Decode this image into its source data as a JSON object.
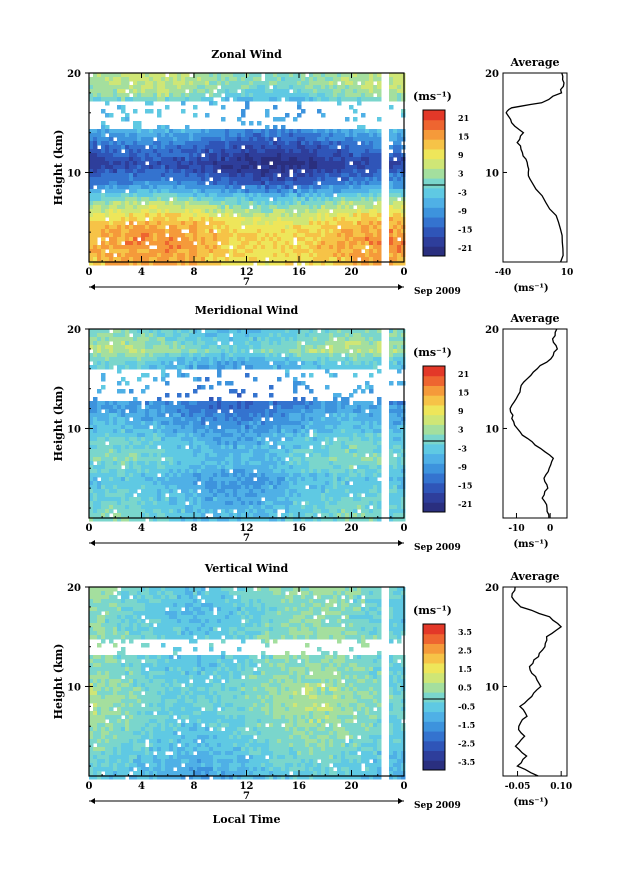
{
  "figure": {
    "xlabel": "Local Time",
    "date_label": "Sep 2009",
    "day_label": "7",
    "x_ticks": [
      "0",
      "4",
      "8",
      "12",
      "16",
      "20",
      "0"
    ],
    "y_ticks": [
      "20",
      "10"
    ],
    "ylabel": "Height (km)",
    "units": "(ms⁻¹)",
    "colors": {
      "palette": [
        "#2a2f7f",
        "#2e3e9b",
        "#2f55b8",
        "#3473cf",
        "#3d93dd",
        "#4fb0e6",
        "#5fc9e3",
        "#7ad6cc",
        "#a4df9e",
        "#cfe676",
        "#eee65a",
        "#f6c347",
        "#f59a3a",
        "#ee6530",
        "#e33828"
      ],
      "axis": "#000000",
      "profile": "#000000",
      "missing": "#ffffff"
    }
  },
  "chart_data": [
    {
      "type": "heatmap",
      "title": "Zonal Wind",
      "xlabel": "",
      "ylabel": "Height (km)",
      "x_ticks": [
        "0",
        "4",
        "8",
        "12",
        "16",
        "20",
        "0"
      ],
      "xlim": [
        0,
        24
      ],
      "ylim": [
        1,
        20
      ],
      "colorbar": {
        "label": "(ms⁻¹)",
        "ticks": [
          "21",
          "15",
          "9",
          "3",
          "-3",
          "-9",
          "-15",
          "-21"
        ],
        "range": [
          -24,
          24
        ]
      },
      "structure": [
        {
          "height_km": 1,
          "value": 12
        },
        {
          "height_km": 3,
          "value": 14
        },
        {
          "height_km": 5,
          "value": 12
        },
        {
          "height_km": 7,
          "value": 3
        },
        {
          "height_km": 9,
          "value": -12
        },
        {
          "height_km": 11,
          "value": -20
        },
        {
          "height_km": 13,
          "value": -14
        },
        {
          "height_km": 15,
          "value": -6
        },
        {
          "height_km": 17,
          "value": -6
        },
        {
          "height_km": 18,
          "value": 0
        },
        {
          "height_km": 19,
          "value": 3
        },
        {
          "height_km": 20,
          "value": 3
        }
      ],
      "missing_ranges_km": [
        [
          14.5,
          17.5
        ]
      ],
      "average_profile": {
        "title": "Average",
        "xlabel": "(ms⁻¹)",
        "x_ticks": [
          "-40",
          "10"
        ],
        "xlim": [
          -40,
          10
        ],
        "y_ticks": [
          "20",
          "10"
        ],
        "points": [
          {
            "height_km": 1,
            "value": 6
          },
          {
            "height_km": 3,
            "value": 7
          },
          {
            "height_km": 5,
            "value": 4
          },
          {
            "height_km": 7,
            "value": -6
          },
          {
            "height_km": 9,
            "value": -18
          },
          {
            "height_km": 10,
            "value": -20
          },
          {
            "height_km": 11,
            "value": -22
          },
          {
            "height_km": 12,
            "value": -24
          },
          {
            "height_km": 13,
            "value": -28
          },
          {
            "height_km": 14,
            "value": -25
          },
          {
            "height_km": 15,
            "value": -33
          },
          {
            "height_km": 16,
            "value": -38
          },
          {
            "height_km": 16.5,
            "value": -34
          },
          {
            "height_km": 17,
            "value": -10
          },
          {
            "height_km": 18,
            "value": 5
          },
          {
            "height_km": 19,
            "value": 7
          },
          {
            "height_km": 20,
            "value": 6
          }
        ]
      }
    },
    {
      "type": "heatmap",
      "title": "Meridional Wind",
      "xlabel": "",
      "ylabel": "Height (km)",
      "x_ticks": [
        "0",
        "4",
        "8",
        "12",
        "16",
        "20",
        "0"
      ],
      "xlim": [
        0,
        24
      ],
      "ylim": [
        1,
        20
      ],
      "colorbar": {
        "label": "(ms⁻¹)",
        "ticks": [
          "21",
          "15",
          "9",
          "3",
          "-3",
          "-9",
          "-15",
          "-21"
        ],
        "range": [
          -24,
          24
        ]
      },
      "structure": [
        {
          "height_km": 1,
          "value": -2
        },
        {
          "height_km": 3,
          "value": -4
        },
        {
          "height_km": 5,
          "value": -6
        },
        {
          "height_km": 7,
          "value": -2
        },
        {
          "height_km": 9,
          "value": -4
        },
        {
          "height_km": 11,
          "value": -8
        },
        {
          "height_km": 13,
          "value": -12
        },
        {
          "height_km": 15,
          "value": -8
        },
        {
          "height_km": 17,
          "value": -4
        },
        {
          "height_km": 18,
          "value": 2
        },
        {
          "height_km": 19,
          "value": 0
        },
        {
          "height_km": 20,
          "value": -2
        }
      ],
      "missing_ranges_km": [
        [
          13,
          16
        ]
      ],
      "average_profile": {
        "title": "Average",
        "xlabel": "(ms⁻¹)",
        "x_ticks": [
          "-10",
          "0"
        ],
        "xlim": [
          -14,
          5
        ],
        "y_ticks": [
          "20",
          "10"
        ],
        "points": [
          {
            "height_km": 1,
            "value": 0
          },
          {
            "height_km": 2,
            "value": -1
          },
          {
            "height_km": 3,
            "value": -2
          },
          {
            "height_km": 4,
            "value": -1
          },
          {
            "height_km": 5,
            "value": -2
          },
          {
            "height_km": 6,
            "value": 0
          },
          {
            "height_km": 7,
            "value": 1
          },
          {
            "height_km": 8,
            "value": -3
          },
          {
            "height_km": 9,
            "value": -7
          },
          {
            "height_km": 10,
            "value": -10
          },
          {
            "height_km": 11,
            "value": -11
          },
          {
            "height_km": 12,
            "value": -12
          },
          {
            "height_km": 13,
            "value": -10
          },
          {
            "height_km": 14,
            "value": -9
          },
          {
            "height_km": 15,
            "value": -7
          },
          {
            "height_km": 16,
            "value": -4
          },
          {
            "height_km": 17,
            "value": 0
          },
          {
            "height_km": 18,
            "value": 2
          },
          {
            "height_km": 19,
            "value": 1
          },
          {
            "height_km": 20,
            "value": 2
          }
        ]
      }
    },
    {
      "type": "heatmap",
      "title": "Vertical Wind",
      "xlabel": "Local Time",
      "ylabel": "Height (km)",
      "x_ticks": [
        "0",
        "4",
        "8",
        "12",
        "16",
        "20",
        "0"
      ],
      "xlim": [
        0,
        24
      ],
      "ylim": [
        1,
        20
      ],
      "colorbar": {
        "label": "(ms⁻¹)",
        "ticks": [
          "3.5",
          "2.5",
          "1.5",
          "0.5",
          "-0.5",
          "-1.5",
          "-2.5",
          "-3.5"
        ],
        "range": [
          -4,
          4
        ]
      },
      "structure": [
        {
          "height_km": 1,
          "value": -0.8
        },
        {
          "height_km": 3,
          "value": -0.5
        },
        {
          "height_km": 5,
          "value": -0.2
        },
        {
          "height_km": 7,
          "value": 0
        },
        {
          "height_km": 9,
          "value": 0.2
        },
        {
          "height_km": 11,
          "value": 0
        },
        {
          "height_km": 13,
          "value": -0.2
        },
        {
          "height_km": 15,
          "value": 0
        },
        {
          "height_km": 17,
          "value": -0.3
        },
        {
          "height_km": 19,
          "value": -0.2
        },
        {
          "height_km": 20,
          "value": 0
        }
      ],
      "missing_ranges_km": [
        [
          13.5,
          15
        ]
      ],
      "average_profile": {
        "title": "Average",
        "xlabel": "(ms⁻¹)",
        "x_ticks": [
          "-0.05",
          "0.10"
        ],
        "xlim": [
          -0.1,
          0.12
        ],
        "y_ticks": [
          "20",
          "10"
        ],
        "points": [
          {
            "height_km": 1,
            "value": 0.02
          },
          {
            "height_km": 2,
            "value": -0.05
          },
          {
            "height_km": 3,
            "value": -0.02
          },
          {
            "height_km": 4,
            "value": -0.06
          },
          {
            "height_km": 5,
            "value": -0.03
          },
          {
            "height_km": 6,
            "value": -0.05
          },
          {
            "height_km": 7,
            "value": -0.02
          },
          {
            "height_km": 8,
            "value": -0.04
          },
          {
            "height_km": 9,
            "value": 0.0
          },
          {
            "height_km": 10,
            "value": 0.03
          },
          {
            "height_km": 11,
            "value": 0.01
          },
          {
            "height_km": 12,
            "value": -0.01
          },
          {
            "height_km": 13,
            "value": 0.02
          },
          {
            "height_km": 14,
            "value": 0.04
          },
          {
            "height_km": 15,
            "value": 0.05
          },
          {
            "height_km": 16,
            "value": 0.1
          },
          {
            "height_km": 17,
            "value": 0.06
          },
          {
            "height_km": 18,
            "value": -0.04
          },
          {
            "height_km": 19,
            "value": -0.07
          },
          {
            "height_km": 20,
            "value": -0.06
          }
        ]
      }
    }
  ]
}
